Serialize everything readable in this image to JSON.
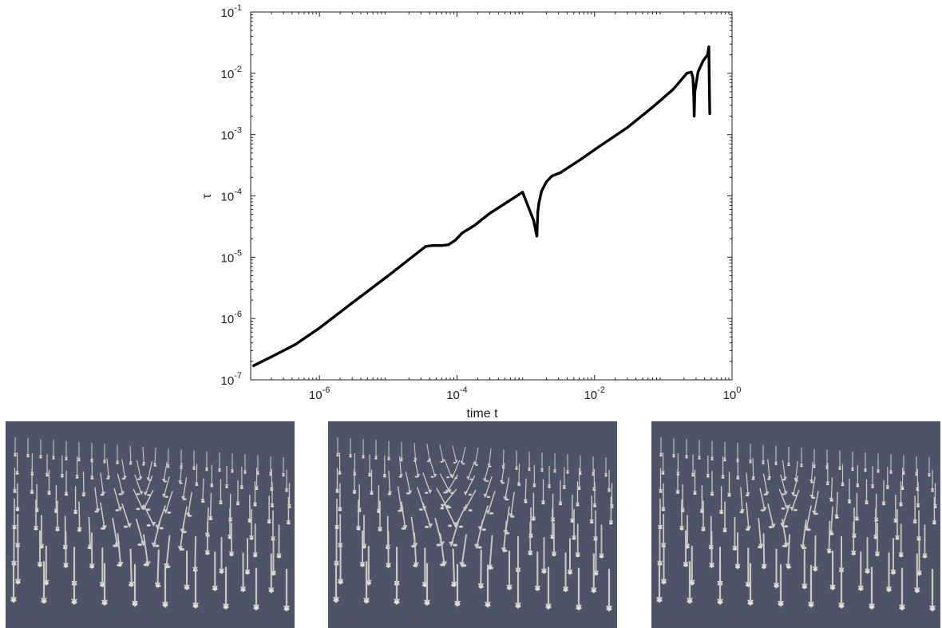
{
  "chart_data": {
    "type": "line",
    "xlabel": "time t",
    "ylabel": "τ",
    "xscale": "log",
    "yscale": "log",
    "xlim": [
      1e-07,
      1
    ],
    "ylim": [
      1e-07,
      0.1
    ],
    "grid": false,
    "x_ticks": [
      {
        "value": 1e-06,
        "base": "10",
        "exp": "-6"
      },
      {
        "value": 0.0001,
        "base": "10",
        "exp": "-4"
      },
      {
        "value": 0.01,
        "base": "10",
        "exp": "-2"
      },
      {
        "value": 1,
        "base": "10",
        "exp": "0"
      }
    ],
    "y_ticks": [
      {
        "value": 1e-07,
        "base": "10",
        "exp": "-7"
      },
      {
        "value": 1e-06,
        "base": "10",
        "exp": "-6"
      },
      {
        "value": 1e-05,
        "base": "10",
        "exp": "-5"
      },
      {
        "value": 0.0001,
        "base": "10",
        "exp": "-4"
      },
      {
        "value": 0.001,
        "base": "10",
        "exp": "-3"
      },
      {
        "value": 0.01,
        "base": "10",
        "exp": "-2"
      },
      {
        "value": 0.1,
        "base": "10",
        "exp": "-1"
      }
    ],
    "series": [
      {
        "color": "#000000",
        "x": [
          1.1e-07,
          2.2e-07,
          4.5e-07,
          1e-06,
          3e-06,
          1e-05,
          3.5e-05,
          4.4e-05,
          6e-05,
          7.5e-05,
          9.5e-05,
          0.00012,
          0.00018,
          0.0003,
          0.0005,
          0.0009,
          0.0013,
          0.00145,
          0.0015,
          0.00155,
          0.0017,
          0.002,
          0.0024,
          0.0032,
          0.006,
          0.012,
          0.03,
          0.07,
          0.14,
          0.22,
          0.255,
          0.27,
          0.278,
          0.282,
          0.288,
          0.32,
          0.38,
          0.44,
          0.46,
          0.475
        ],
        "y": [
          1.7e-07,
          2.5e-07,
          3.8e-07,
          7e-07,
          1.8e-06,
          5e-06,
          1.5e-05,
          1.55e-05,
          1.55e-05,
          1.6e-05,
          1.9e-05,
          2.5e-05,
          3.3e-05,
          5.2e-05,
          7.5e-05,
          0.000115,
          4e-05,
          2.2e-05,
          5.5e-05,
          7.5e-05,
          0.00012,
          0.00017,
          0.00021,
          0.00024,
          0.00038,
          0.00065,
          0.0013,
          0.0028,
          0.0055,
          0.01,
          0.0105,
          0.0085,
          0.004,
          0.002,
          0.005,
          0.0105,
          0.016,
          0.02,
          0.027,
          0.0022
        ]
      }
    ]
  },
  "panels": [
    {
      "background": "#4f5368",
      "arrow_color": "#c9cbc0"
    },
    {
      "background": "#4f5368",
      "arrow_color": "#c9cbc0"
    },
    {
      "background": "#4f5368",
      "arrow_color": "#c9cbc0"
    }
  ]
}
